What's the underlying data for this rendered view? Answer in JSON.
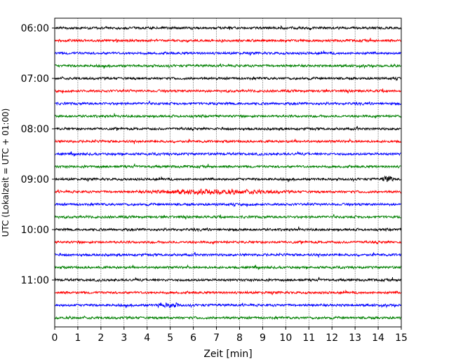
{
  "chart_data": {
    "type": "line",
    "title": "",
    "xlabel": "Zeit  [min]",
    "ylabel": "UTC (Lokalzeit = UTC + 01:00)",
    "xlim": [
      0,
      15
    ],
    "x_ticks": [
      "0",
      "1",
      "2",
      "3",
      "4",
      "5",
      "6",
      "7",
      "8",
      "9",
      "10",
      "11",
      "12",
      "13",
      "14",
      "15"
    ],
    "y_tick_labels": [
      "06:00",
      "07:00",
      "08:00",
      "09:00",
      "10:00",
      "11:00"
    ],
    "grid": "vertical dotted lines at each minute",
    "trace_interval_minutes": 15,
    "trace_colors_cycle": [
      "#000000",
      "#ff0000",
      "#0000ff",
      "#008000"
    ],
    "traces": [
      {
        "start": "06:00",
        "color": "#000000"
      },
      {
        "start": "06:15",
        "color": "#ff0000"
      },
      {
        "start": "06:30",
        "color": "#0000ff"
      },
      {
        "start": "06:45",
        "color": "#008000"
      },
      {
        "start": "07:00",
        "color": "#000000"
      },
      {
        "start": "07:15",
        "color": "#ff0000"
      },
      {
        "start": "07:30",
        "color": "#0000ff"
      },
      {
        "start": "07:45",
        "color": "#008000"
      },
      {
        "start": "08:00",
        "color": "#000000"
      },
      {
        "start": "08:15",
        "color": "#ff0000"
      },
      {
        "start": "08:30",
        "color": "#0000ff"
      },
      {
        "start": "08:45",
        "color": "#008000"
      },
      {
        "start": "09:00",
        "color": "#000000"
      },
      {
        "start": "09:15",
        "color": "#ff0000"
      },
      {
        "start": "09:30",
        "color": "#0000ff"
      },
      {
        "start": "09:45",
        "color": "#008000"
      },
      {
        "start": "10:00",
        "color": "#000000"
      },
      {
        "start": "10:15",
        "color": "#ff0000"
      },
      {
        "start": "10:30",
        "color": "#0000ff"
      },
      {
        "start": "10:45",
        "color": "#008000"
      },
      {
        "start": "11:00",
        "color": "#000000"
      },
      {
        "start": "11:15",
        "color": "#ff0000"
      },
      {
        "start": "11:30",
        "color": "#0000ff"
      },
      {
        "start": "11:45",
        "color": "#008000"
      }
    ]
  }
}
